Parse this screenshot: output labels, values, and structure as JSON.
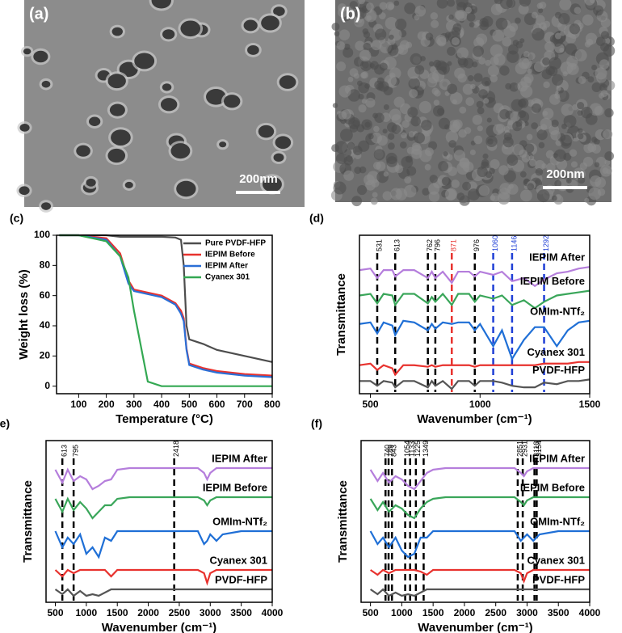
{
  "chart_data": [
    {
      "type": "image",
      "panel_label": "(a)",
      "scale_bar": "200nm",
      "tone": "#8c8c8c"
    },
    {
      "type": "image",
      "panel_label": "(b)",
      "scale_bar": "200nm",
      "tone": "#6e6e6e"
    },
    {
      "type": "line",
      "panel_label": "(c)",
      "xlabel": "Temperature (°C)",
      "ylabel": "Weight loss (%)",
      "xlim": [
        20,
        800
      ],
      "xticks": [
        100,
        200,
        300,
        400,
        500,
        600,
        700,
        800
      ],
      "ylim": [
        -5,
        100
      ],
      "yticks": [
        0,
        20,
        40,
        60,
        80,
        100
      ],
      "legend": "upper right",
      "x": [
        30,
        100,
        200,
        250,
        280,
        300,
        350,
        400,
        450,
        470,
        480,
        490,
        500,
        550,
        600,
        700,
        800
      ],
      "series": [
        {
          "name": "Pure PVDF-HFP",
          "color": "#4d4d4d",
          "values": [
            100,
            100,
            100,
            99,
            99,
            99,
            99,
            99,
            98.5,
            97,
            80,
            40,
            31,
            28,
            24,
            20,
            16
          ]
        },
        {
          "name": "IEPIM Before",
          "color": "#e8322e",
          "values": [
            100,
            100,
            98,
            88,
            70,
            64,
            62,
            60,
            55,
            50,
            45,
            25,
            15,
            12,
            10,
            8,
            7
          ]
        },
        {
          "name": "IEPIM After",
          "color": "#2b6fd6",
          "values": [
            100,
            100,
            97,
            86,
            68,
            63,
            61,
            59,
            54,
            48,
            43,
            24,
            14,
            11,
            9,
            7,
            6
          ]
        },
        {
          "name": "Cyanex 301",
          "color": "#33a852",
          "values": [
            100,
            100,
            96,
            86,
            72,
            50,
            3,
            0,
            0,
            0,
            0,
            0,
            0,
            0,
            0,
            0,
            0
          ]
        }
      ]
    },
    {
      "type": "line",
      "panel_label": "(d)",
      "xlabel": "Wavenumber (cm⁻¹)",
      "ylabel": "Transmittance",
      "xlim": [
        450,
        1500
      ],
      "xticks": [
        500,
        1000,
        1500
      ],
      "ylim": [
        0,
        100
      ],
      "vlines": [
        {
          "value": 531,
          "color": "#000000"
        },
        {
          "value": 613,
          "color": "#000000"
        },
        {
          "value": 762,
          "color": "#000000"
        },
        {
          "value": 796,
          "color": "#000000"
        },
        {
          "value": 871,
          "color": "#e8322e"
        },
        {
          "value": 976,
          "color": "#000000"
        },
        {
          "value": 1060,
          "color": "#1f3fd6"
        },
        {
          "value": 1146,
          "color": "#1f3fd6"
        },
        {
          "value": 1292,
          "color": "#1f3fd6"
        }
      ],
      "x": [
        450,
        500,
        531,
        560,
        600,
        613,
        650,
        700,
        762,
        780,
        796,
        830,
        871,
        900,
        950,
        976,
        1000,
        1060,
        1100,
        1146,
        1200,
        1250,
        1292,
        1350,
        1400,
        1450,
        1500
      ],
      "series": [
        {
          "name": "IEPIM After",
          "color": "#b57edc",
          "values": [
            78,
            79,
            73,
            78,
            78,
            74,
            78,
            78,
            73,
            77,
            73,
            77,
            70,
            77,
            77,
            74,
            77,
            75,
            77,
            71,
            73,
            68,
            72,
            76,
            77,
            79,
            80
          ]
        },
        {
          "name": "IEPIM Before",
          "color": "#3aa65a",
          "values": [
            62,
            63,
            57,
            63,
            62,
            56,
            63,
            63,
            57,
            61,
            58,
            63,
            56,
            63,
            63,
            58,
            62,
            60,
            62,
            56,
            59,
            54,
            58,
            62,
            63,
            64,
            65
          ]
        },
        {
          "name": "OMIm-NTf₂",
          "color": "#1f6fd6",
          "values": [
            44,
            45,
            38,
            45,
            43,
            37,
            46,
            45,
            40,
            44,
            41,
            45,
            44,
            45,
            45,
            40,
            44,
            30,
            40,
            22,
            34,
            42,
            42,
            30,
            40,
            45,
            46
          ]
        },
        {
          "name": "Cyanex 301",
          "color": "#e8322e",
          "values": [
            18,
            19,
            15,
            18,
            16,
            12,
            18,
            18,
            17,
            18,
            17,
            18,
            18,
            18,
            18,
            17,
            18,
            18,
            18,
            18,
            18,
            18,
            19,
            19,
            19,
            20,
            20
          ]
        },
        {
          "name": "PVDF-HFP",
          "color": "#555555",
          "values": [
            8,
            8,
            5,
            8,
            7,
            4,
            8,
            8,
            4,
            8,
            5,
            8,
            3,
            8,
            8,
            5,
            8,
            8,
            7,
            5,
            4,
            4,
            7,
            6,
            8,
            8,
            9
          ]
        }
      ]
    },
    {
      "type": "line",
      "panel_label": "(e)",
      "xlabel": "Wavenumber (cm⁻¹)",
      "ylabel": "Transmittance",
      "xlim": [
        350,
        4000
      ],
      "xticks": [
        500,
        1000,
        1500,
        2000,
        2500,
        3000,
        3500,
        4000
      ],
      "ylim": [
        0,
        100
      ],
      "vlines": [
        {
          "value": 613,
          "color": "#000000"
        },
        {
          "value": 795,
          "color": "#000000"
        },
        {
          "value": 2418,
          "color": "#000000"
        }
      ],
      "x": [
        500,
        613,
        700,
        795,
        900,
        1000,
        1100,
        1200,
        1300,
        1400,
        1500,
        1700,
        2000,
        2418,
        2800,
        2900,
        2950,
        3000,
        3100,
        3200,
        3500,
        4000
      ],
      "series": [
        {
          "name": "IEPIM After",
          "color": "#b57edc",
          "values": [
            82,
            74,
            82,
            75,
            78,
            76,
            70,
            72,
            75,
            76,
            82,
            83,
            83,
            83,
            83,
            80,
            76,
            80,
            83,
            83,
            83,
            83
          ]
        },
        {
          "name": "IEPIM Before",
          "color": "#3aa65a",
          "values": [
            64,
            56,
            64,
            57,
            62,
            58,
            52,
            56,
            60,
            60,
            64,
            65,
            65,
            65,
            65,
            63,
            60,
            63,
            65,
            65,
            65,
            65
          ]
        },
        {
          "name": "OMIm-NTf₂",
          "color": "#1f6fd6",
          "values": [
            44,
            34,
            40,
            36,
            42,
            30,
            34,
            28,
            40,
            38,
            44,
            44,
            44,
            44,
            44,
            36,
            38,
            42,
            38,
            42,
            44,
            44
          ]
        },
        {
          "name": "Cyanex 301",
          "color": "#e8322e",
          "values": [
            20,
            16,
            20,
            18,
            20,
            20,
            20,
            20,
            20,
            16,
            20,
            20,
            20,
            20,
            20,
            18,
            12,
            18,
            20,
            20,
            20,
            20
          ]
        },
        {
          "name": "PVDF-HFP",
          "color": "#555555",
          "values": [
            8,
            5,
            8,
            4,
            7,
            4,
            5,
            4,
            6,
            8,
            8,
            8,
            8,
            8,
            8,
            8,
            8,
            8,
            8,
            8,
            8,
            8
          ]
        }
      ]
    },
    {
      "type": "line",
      "panel_label": "(f)",
      "xlabel": "Wavenumber (cm⁻¹)",
      "ylabel": "Transmittance",
      "xlim": [
        350,
        4000
      ],
      "xticks": [
        500,
        1000,
        1500,
        2000,
        2500,
        3000,
        3500,
        4000
      ],
      "ylim": [
        0,
        100
      ],
      "vlines": [
        {
          "value": 740,
          "color": "#000000"
        },
        {
          "value": 789,
          "color": "#000000"
        },
        {
          "value": 843,
          "color": "#000000"
        },
        {
          "value": 1054,
          "color": "#000000"
        },
        {
          "value": 1133,
          "color": "#000000"
        },
        {
          "value": 1225,
          "color": "#000000"
        },
        {
          "value": 1349,
          "color": "#000000"
        },
        {
          "value": 2851,
          "color": "#000000"
        },
        {
          "value": 2931,
          "color": "#000000"
        },
        {
          "value": 3118,
          "color": "#000000"
        },
        {
          "value": 3154,
          "color": "#000000"
        }
      ],
      "x": [
        500,
        613,
        700,
        795,
        900,
        1000,
        1100,
        1200,
        1300,
        1400,
        1500,
        1700,
        2000,
        2418,
        2800,
        2900,
        2950,
        3000,
        3100,
        3200,
        3500,
        4000
      ],
      "series": [
        {
          "name": "IEPIM After",
          "color": "#b57edc",
          "values": [
            82,
            75,
            80,
            74,
            78,
            76,
            72,
            70,
            75,
            80,
            82,
            83,
            83,
            83,
            83,
            80,
            78,
            81,
            83,
            83,
            83,
            83
          ]
        },
        {
          "name": "IEPIM Before",
          "color": "#3aa65a",
          "values": [
            64,
            57,
            62,
            56,
            60,
            58,
            54,
            52,
            58,
            62,
            64,
            65,
            65,
            65,
            65,
            62,
            60,
            63,
            65,
            65,
            65,
            65
          ]
        },
        {
          "name": "OMIm-NTf₂",
          "color": "#1f6fd6",
          "values": [
            44,
            36,
            40,
            34,
            40,
            32,
            28,
            30,
            40,
            40,
            44,
            44,
            44,
            44,
            44,
            38,
            40,
            42,
            38,
            42,
            44,
            44
          ]
        },
        {
          "name": "Cyanex 301",
          "color": "#e8322e",
          "values": [
            20,
            17,
            20,
            18,
            20,
            20,
            20,
            20,
            19,
            17,
            20,
            20,
            20,
            20,
            20,
            18,
            13,
            18,
            20,
            20,
            20,
            20
          ]
        },
        {
          "name": "PVDF-HFP",
          "color": "#555555",
          "values": [
            8,
            5,
            8,
            4,
            6,
            4,
            5,
            4,
            6,
            8,
            8,
            8,
            8,
            8,
            8,
            8,
            8,
            8,
            8,
            8,
            8,
            8
          ]
        }
      ]
    }
  ]
}
